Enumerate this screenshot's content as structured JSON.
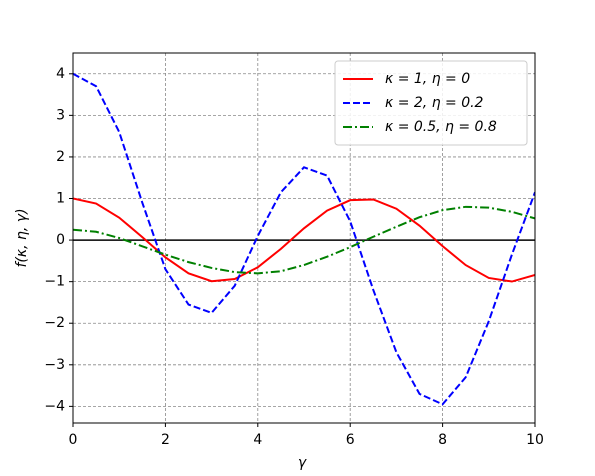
{
  "chart_data": {
    "type": "line",
    "x_label": "γ",
    "y_label": "f(κ, η, γ)",
    "x": [
      0,
      0.5,
      1,
      1.5,
      2,
      2.5,
      3,
      3.5,
      4,
      4.5,
      5,
      5.5,
      6,
      6.5,
      7,
      7.5,
      8,
      8.5,
      9,
      9.5,
      10
    ],
    "series": [
      {
        "name": "κ = 1, η = 0",
        "color": "#ff0000",
        "dash": "solid",
        "values": [
          1,
          0.878,
          0.54,
          0.071,
          -0.416,
          -0.801,
          -0.99,
          -0.936,
          -0.654,
          -0.211,
          0.284,
          0.709,
          0.96,
          0.977,
          0.754,
          0.347,
          -0.146,
          -0.602,
          -0.911,
          -0.997,
          -0.839
        ]
      },
      {
        "name": "κ = 2, η = 0.2",
        "color": "#0000ff",
        "dash": "dashed",
        "values": [
          4,
          3.7,
          2.6,
          0.9,
          -0.7,
          -1.55,
          -1.75,
          -1.1,
          0.1,
          1.15,
          1.75,
          1.55,
          0.45,
          -1.2,
          -2.7,
          -3.7,
          -3.95,
          -3.3,
          -1.95,
          -0.35,
          1.15
        ]
      },
      {
        "name": "κ = 0.5, η = 0.8",
        "color": "#008000",
        "dash": "dashdot",
        "values": [
          0.25,
          0.2,
          0.05,
          -0.15,
          -0.35,
          -0.53,
          -0.67,
          -0.77,
          -0.8,
          -0.75,
          -0.6,
          -0.4,
          -0.17,
          0.08,
          0.32,
          0.55,
          0.72,
          0.8,
          0.78,
          0.68,
          0.52
        ]
      }
    ],
    "xlim": [
      0,
      10
    ],
    "xticks": [
      0,
      2,
      4,
      6,
      8,
      10
    ],
    "ylim": [
      -4.4,
      4.5
    ],
    "yticks": [
      {
        "value": -4,
        "label": "−4"
      },
      {
        "value": -3,
        "label": "−3"
      },
      {
        "value": -2,
        "label": "−2"
      },
      {
        "value": -1,
        "label": "−1"
      },
      0,
      1,
      2,
      3,
      4
    ],
    "axhline": 0,
    "grid": true,
    "legend": "upper right"
  }
}
